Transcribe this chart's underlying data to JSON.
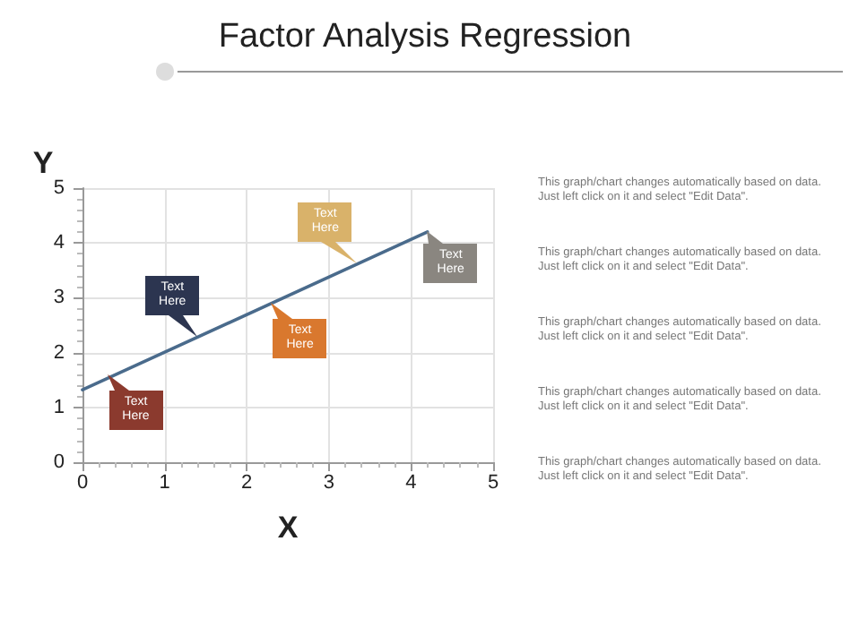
{
  "chart_data": {
    "type": "line",
    "title": "Factor Analysis Regression",
    "xlabel": "X",
    "ylabel": "Y",
    "x": [
      0,
      4.2
    ],
    "series": [
      {
        "color": "#4a6b8c",
        "values": [
          1.32,
          4.2
        ]
      }
    ],
    "xlim": [
      0,
      5
    ],
    "ylim": [
      0,
      5
    ],
    "xticks": [
      0,
      1,
      2,
      3,
      4,
      5
    ],
    "yticks": [
      0,
      1,
      2,
      3,
      4,
      5
    ],
    "grid": true,
    "marker": "none",
    "line_style": "solid",
    "annotations": [
      {
        "text": "Text Here",
        "x": 0.3,
        "y": 1.6
      },
      {
        "text": "Text Here",
        "x": 1.4,
        "y": 2.28
      },
      {
        "text": "Text Here",
        "x": 3.35,
        "y": 3.62
      },
      {
        "text": "Text Here",
        "x": 2.3,
        "y": 2.9
      },
      {
        "text": "Text Here",
        "x": 4.2,
        "y": 4.2
      },
      "This graph/chart changes automatically based on data. Just left click on it and select \"Edit Data\".",
      "This graph/chart changes automatically based on data. Just left click on it and select \"Edit Data\".",
      "This graph/chart changes automatically based on data. Just left click on it and select \"Edit Data\".",
      "This graph/chart changes automatically based on data. Just left click on it and select \"Edit Data\".",
      "This graph/chart changes automatically based on data. Just left click on it and select \"Edit Data\"."
    ]
  }
}
